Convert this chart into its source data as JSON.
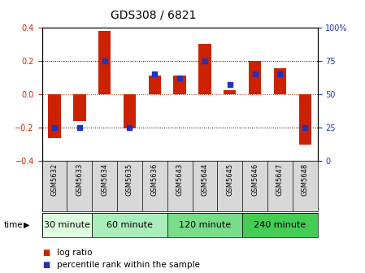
{
  "title": "GDS308 / 6821",
  "samples": [
    "GSM5632",
    "GSM5633",
    "GSM5634",
    "GSM5635",
    "GSM5636",
    "GSM5643",
    "GSM5644",
    "GSM5645",
    "GSM5646",
    "GSM5647",
    "GSM5648"
  ],
  "log_ratio": [
    -0.265,
    -0.16,
    0.38,
    -0.205,
    0.11,
    0.11,
    0.3,
    0.025,
    0.2,
    0.155,
    -0.3
  ],
  "percentile": [
    25,
    25,
    75,
    25,
    65,
    62,
    75,
    57,
    65,
    65,
    25
  ],
  "ylim_left": [
    -0.4,
    0.4
  ],
  "ylim_right": [
    0,
    100
  ],
  "yticks_left": [
    -0.4,
    -0.2,
    0,
    0.2,
    0.4
  ],
  "yticks_right": [
    0,
    25,
    50,
    75,
    100
  ],
  "bar_color": "#cc2200",
  "dot_color": "#2233bb",
  "groups": [
    {
      "label": "30 minute",
      "start": 0,
      "end": 2,
      "color": "#ddffdd"
    },
    {
      "label": "60 minute",
      "start": 2,
      "end": 5,
      "color": "#aaeebb"
    },
    {
      "label": "120 minute",
      "start": 5,
      "end": 8,
      "color": "#77dd88"
    },
    {
      "label": "240 minute",
      "start": 8,
      "end": 11,
      "color": "#44cc55"
    }
  ],
  "xlabel_time": "time",
  "bg_color": "#ffffff",
  "tick_label_color_left": "#cc2200",
  "tick_label_color_right": "#2233bb",
  "sample_box_color": "#d8d8d8",
  "title_fontsize": 10,
  "axis_fontsize": 7,
  "group_fontsize": 8,
  "legend_fontsize": 7.5
}
